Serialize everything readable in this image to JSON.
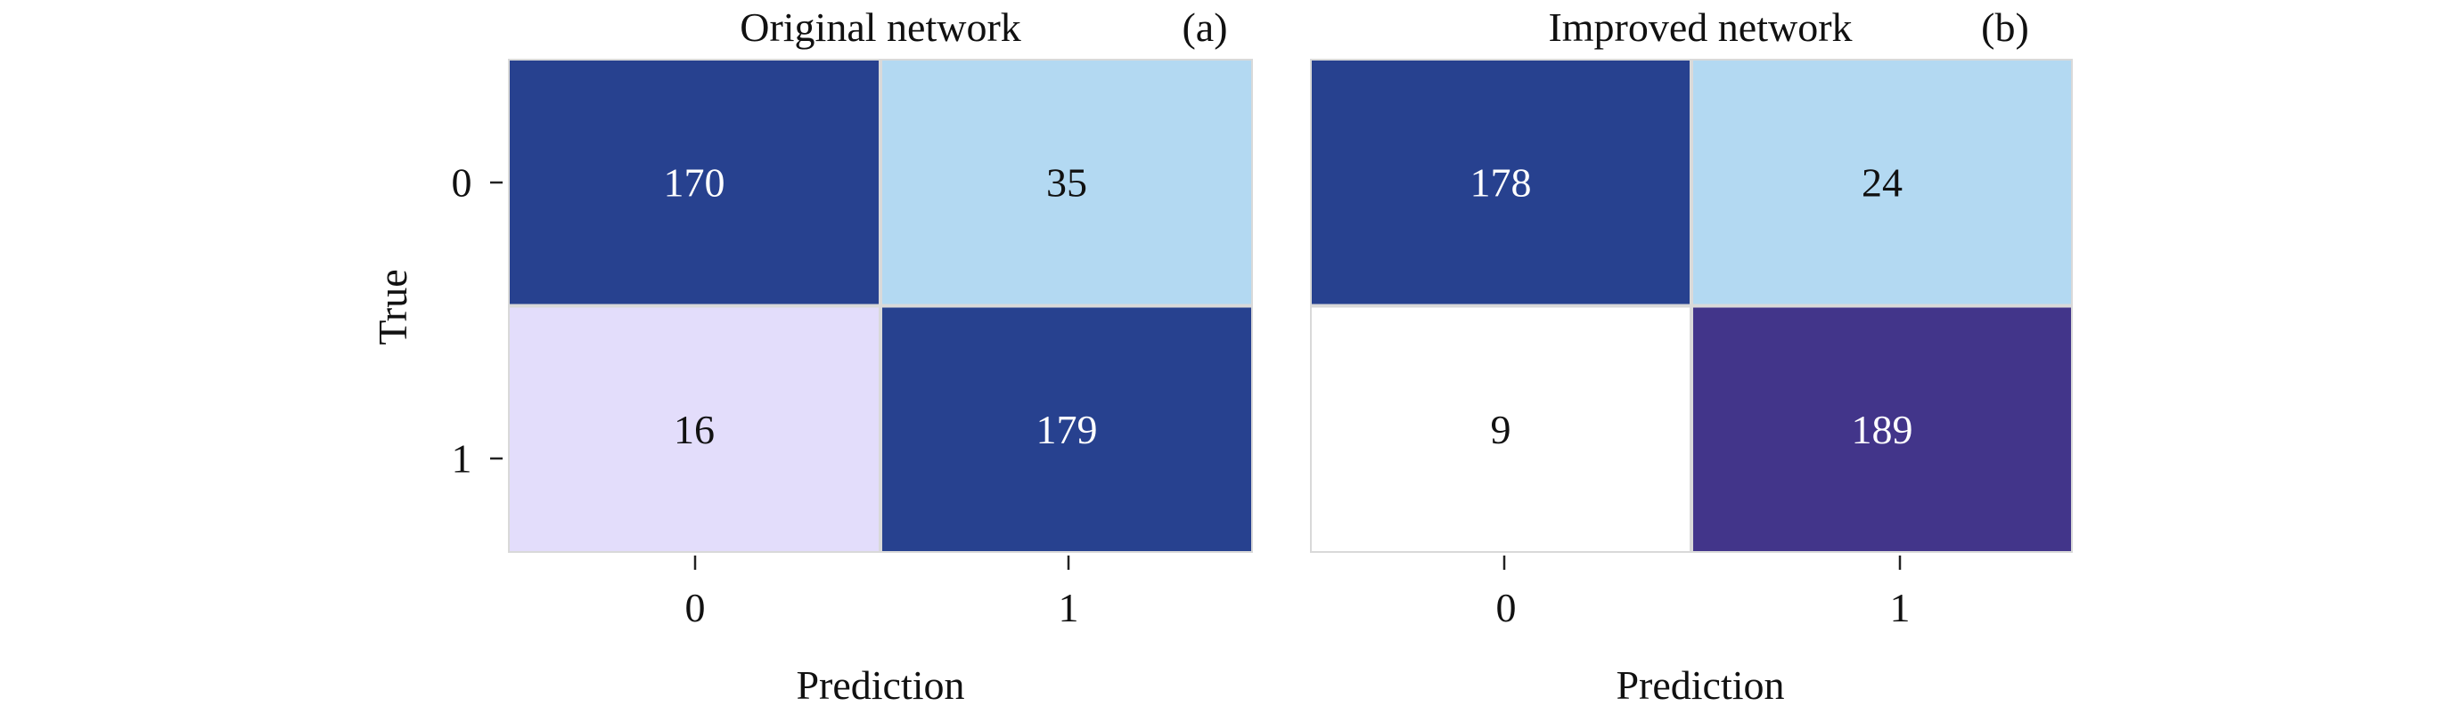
{
  "chart_data": [
    {
      "type": "heatmap",
      "title": "Original network",
      "panel_label": "(a)",
      "xlabel": "Prediction",
      "ylabel": "True",
      "x_categories": [
        "0",
        "1"
      ],
      "y_categories": [
        "0",
        "1"
      ],
      "values": [
        [
          170,
          35
        ],
        [
          16,
          179
        ]
      ],
      "cell_colors": [
        [
          "#27418f",
          "#b3d9f2"
        ],
        [
          "#e3ddfb",
          "#27418f"
        ]
      ],
      "value_colors": [
        [
          "#ffffff",
          "#111111"
        ],
        [
          "#111111",
          "#ffffff"
        ]
      ]
    },
    {
      "type": "heatmap",
      "title": "Improved network",
      "panel_label": "(b)",
      "xlabel": "Prediction",
      "ylabel": "",
      "x_categories": [
        "0",
        "1"
      ],
      "y_categories": [
        "0",
        "1"
      ],
      "values": [
        [
          178,
          24
        ],
        [
          9,
          189
        ]
      ],
      "cell_colors": [
        [
          "#27418f",
          "#b3d9f2"
        ],
        [
          "#ffffff",
          "#42358a"
        ]
      ],
      "value_colors": [
        [
          "#ffffff",
          "#111111"
        ],
        [
          "#111111",
          "#ffffff"
        ]
      ]
    }
  ]
}
